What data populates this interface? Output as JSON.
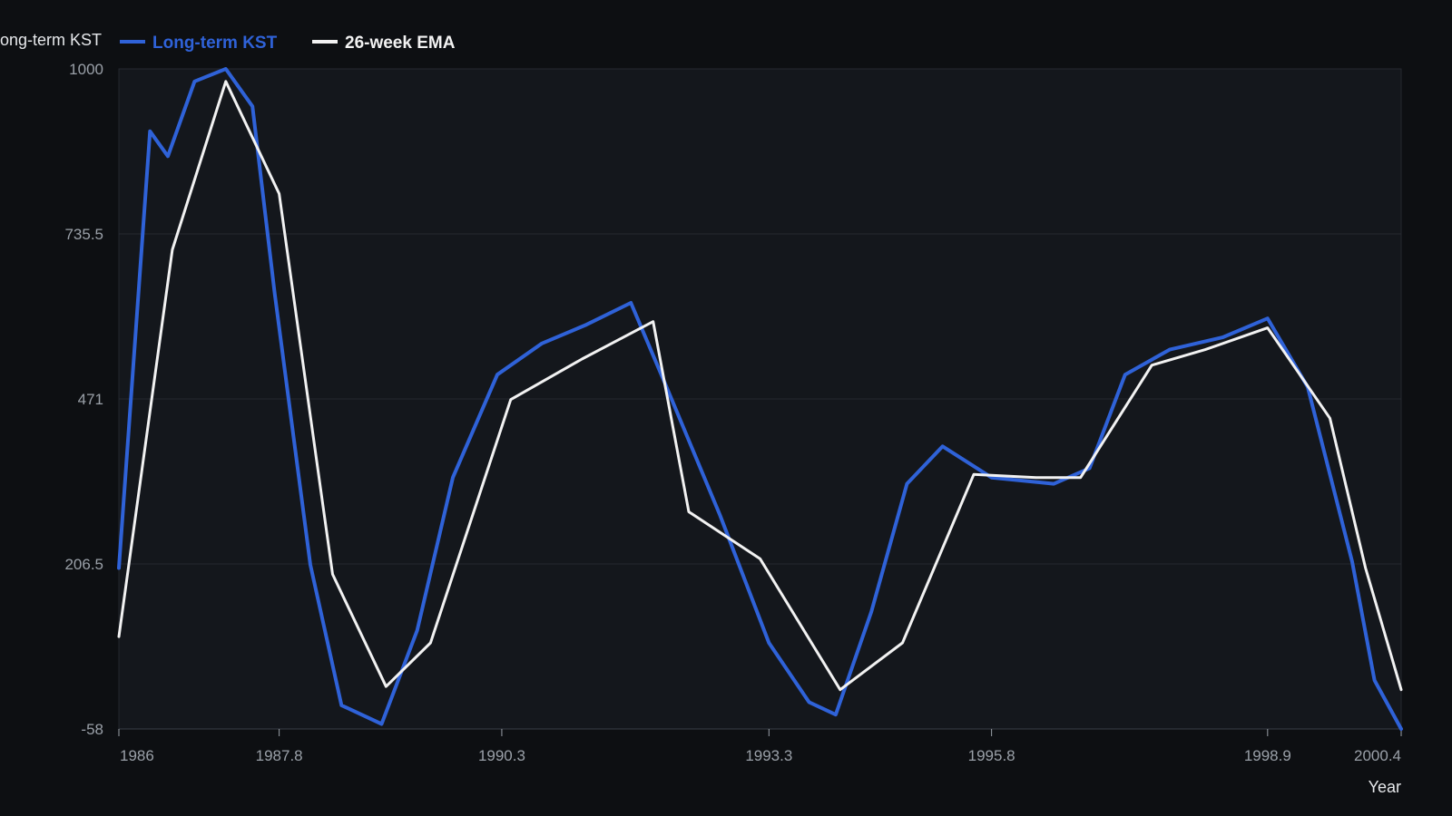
{
  "chart_data": {
    "type": "line",
    "title": "",
    "xlabel": "Year",
    "ylabel": "",
    "xlim": [
      1986,
      2000.4
    ],
    "ylim": [
      -58,
      1000
    ],
    "grid": true,
    "legend_position": "top-left",
    "x_ticks": [
      "1986",
      "1987.8",
      "1990.3",
      "1993.3",
      "1995.8",
      "1998.9",
      "2000.4"
    ],
    "y_ticks": [
      "1000",
      "735.5",
      "471",
      "206.5",
      "-58"
    ],
    "x_tick_values": [
      1986,
      1987.8,
      1990.3,
      1993.3,
      1995.8,
      1998.9,
      2000.4
    ],
    "y_tick_values": [
      1000,
      735.5,
      471,
      206.5,
      -58
    ],
    "legend_left_text": "Long-term KST",
    "series": [
      {
        "name": "Long-term KST",
        "color": "#2f62d8",
        "points": [
          [
            1986.0,
            200
          ],
          [
            1986.35,
            900
          ],
          [
            1986.55,
            860
          ],
          [
            1986.85,
            980
          ],
          [
            1987.2,
            1000
          ],
          [
            1987.5,
            940
          ],
          [
            1987.75,
            640
          ],
          [
            1988.15,
            205
          ],
          [
            1988.5,
            -20
          ],
          [
            1988.95,
            -50
          ],
          [
            1989.35,
            100
          ],
          [
            1989.75,
            345
          ],
          [
            1990.25,
            510
          ],
          [
            1990.75,
            560
          ],
          [
            1991.25,
            590
          ],
          [
            1991.75,
            625
          ],
          [
            1992.15,
            490
          ],
          [
            1992.75,
            285
          ],
          [
            1993.3,
            80
          ],
          [
            1993.75,
            -15
          ],
          [
            1994.05,
            -35
          ],
          [
            1994.45,
            130
          ],
          [
            1994.85,
            335
          ],
          [
            1995.25,
            395
          ],
          [
            1995.8,
            345
          ],
          [
            1996.5,
            335
          ],
          [
            1996.9,
            360
          ],
          [
            1997.3,
            510
          ],
          [
            1997.8,
            550
          ],
          [
            1998.4,
            570
          ],
          [
            1998.9,
            600
          ],
          [
            1999.35,
            490
          ],
          [
            1999.85,
            210
          ],
          [
            2000.1,
            20
          ],
          [
            2000.4,
            -58
          ]
        ]
      },
      {
        "name": "26-week EMA",
        "color": "#f2f2f2",
        "points": [
          [
            1986.0,
            90
          ],
          [
            1986.6,
            710
          ],
          [
            1987.2,
            980
          ],
          [
            1987.8,
            800
          ],
          [
            1988.4,
            190
          ],
          [
            1989.0,
            10
          ],
          [
            1989.5,
            80
          ],
          [
            1990.4,
            470
          ],
          [
            1991.2,
            535
          ],
          [
            1992.0,
            595
          ],
          [
            1992.4,
            290
          ],
          [
            1993.2,
            215
          ],
          [
            1994.1,
            5
          ],
          [
            1994.8,
            80
          ],
          [
            1995.6,
            350
          ],
          [
            1996.3,
            345
          ],
          [
            1996.8,
            345
          ],
          [
            1997.6,
            525
          ],
          [
            1998.2,
            550
          ],
          [
            1998.9,
            585
          ],
          [
            1999.6,
            440
          ],
          [
            2000.0,
            200
          ],
          [
            2000.4,
            5
          ]
        ]
      }
    ]
  }
}
